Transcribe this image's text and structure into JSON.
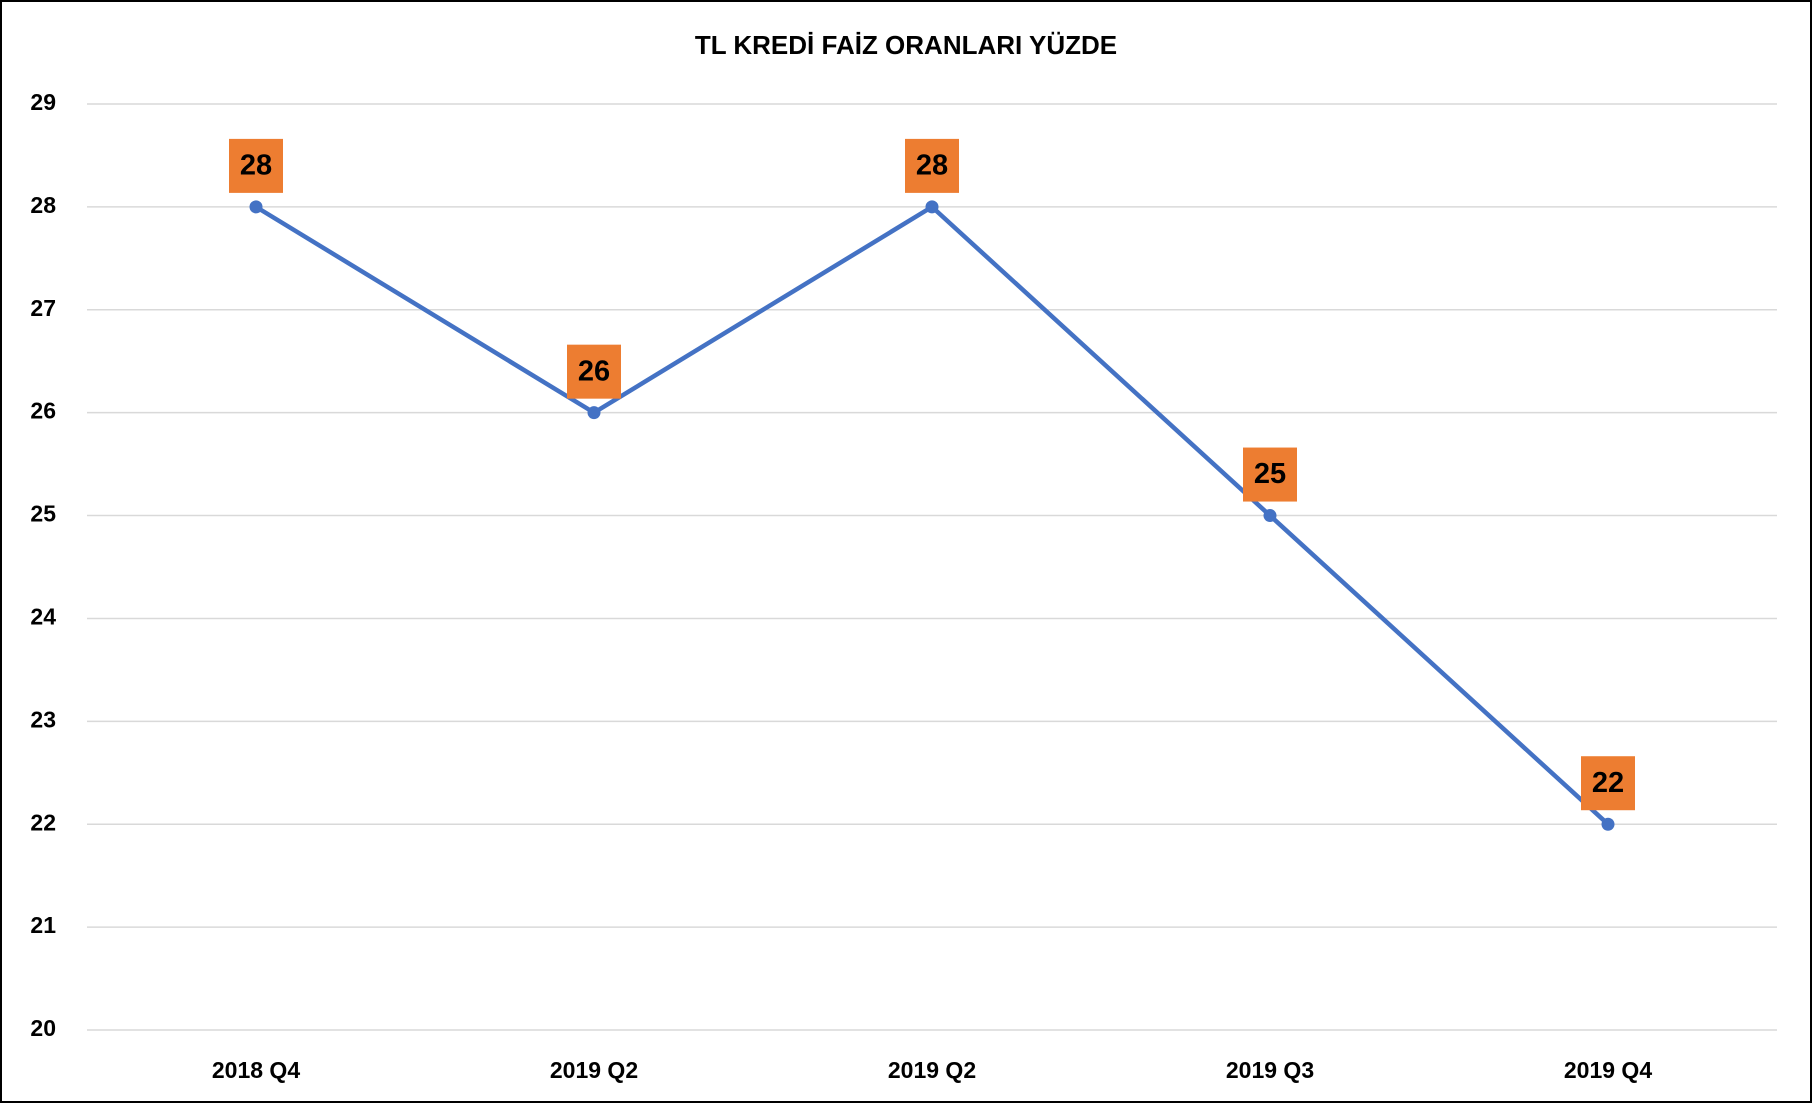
{
  "chart_data": {
    "type": "line",
    "title": "TL KREDİ FAİZ ORANLARI YÜZDE",
    "categories": [
      "2018 Q4",
      "2019 Q2",
      "2019 Q2",
      "2019 Q3",
      "2019 Q4"
    ],
    "values": [
      28,
      26,
      28,
      25,
      22
    ],
    "color": "#4472c4",
    "label_color": "#ed7d31",
    "ylim": [
      20,
      29
    ],
    "yticks": [
      20,
      21,
      22,
      23,
      24,
      25,
      26,
      27,
      28,
      29
    ],
    "grid": true
  }
}
